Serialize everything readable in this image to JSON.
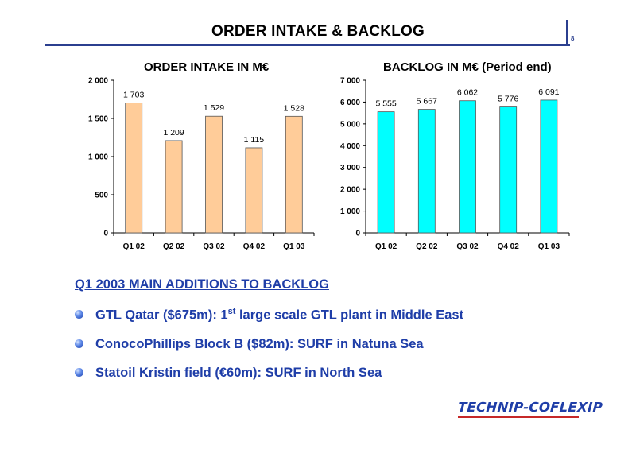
{
  "header": {
    "title": "ORDER INTAKE & BACKLOG",
    "page_number": "8"
  },
  "charts": {
    "order_intake": {
      "title": "ORDER INTAKE IN M€"
    },
    "backlog": {
      "title": "BACKLOG IN M€ (Period end)"
    }
  },
  "chart_data": [
    {
      "type": "bar",
      "title": "ORDER INTAKE IN M€",
      "categories": [
        "Q1 02",
        "Q2 02",
        "Q3 02",
        "Q4 02",
        "Q1 03"
      ],
      "values": [
        1703,
        1209,
        1529,
        1115,
        1528
      ],
      "value_labels": [
        "1 703",
        "1 209",
        "1 529",
        "1 115",
        "1 528"
      ],
      "ylim": [
        0,
        2000
      ],
      "yticks": [
        0,
        500,
        1000,
        1500,
        2000
      ],
      "ytick_labels": [
        "0",
        "500",
        "1 000",
        "1 500",
        "2 000"
      ],
      "bar_color": "#ffcc99",
      "grid": false,
      "legend": "none"
    },
    {
      "type": "bar",
      "title": "BACKLOG IN M€ (Period end)",
      "categories": [
        "Q1 02",
        "Q2 02",
        "Q3 02",
        "Q4 02",
        "Q1 03"
      ],
      "values": [
        5555,
        5667,
        6062,
        5776,
        6091
      ],
      "value_labels": [
        "5 555",
        "5 667",
        "6 062",
        "5 776",
        "6 091"
      ],
      "ylim": [
        0,
        7000
      ],
      "yticks": [
        0,
        1000,
        2000,
        3000,
        4000,
        5000,
        6000,
        7000
      ],
      "ytick_labels": [
        "0",
        "1 000",
        "2 000",
        "3 000",
        "4 000",
        "5 000",
        "6 000",
        "7 000"
      ],
      "bar_color": "#00ffff",
      "grid": false,
      "legend": "none"
    }
  ],
  "additions": {
    "heading": "Q1 2003 MAIN ADDITIONS TO BACKLOG",
    "items": [
      {
        "pre": "GTL Qatar ($675m): 1",
        "sup": "st",
        "post": " large scale GTL plant in Middle East"
      },
      {
        "pre": "ConocoPhillips Block B ($82m): SURF in Natuna Sea",
        "sup": "",
        "post": ""
      },
      {
        "pre": "Statoil Kristin field (€60m): SURF in North Sea",
        "sup": "",
        "post": ""
      }
    ]
  },
  "footer": {
    "logo_text": "TECHNIP-COFLEXIP"
  },
  "colors": {
    "accent_blue": "#1f3ea8",
    "logo_red": "#c62828"
  }
}
